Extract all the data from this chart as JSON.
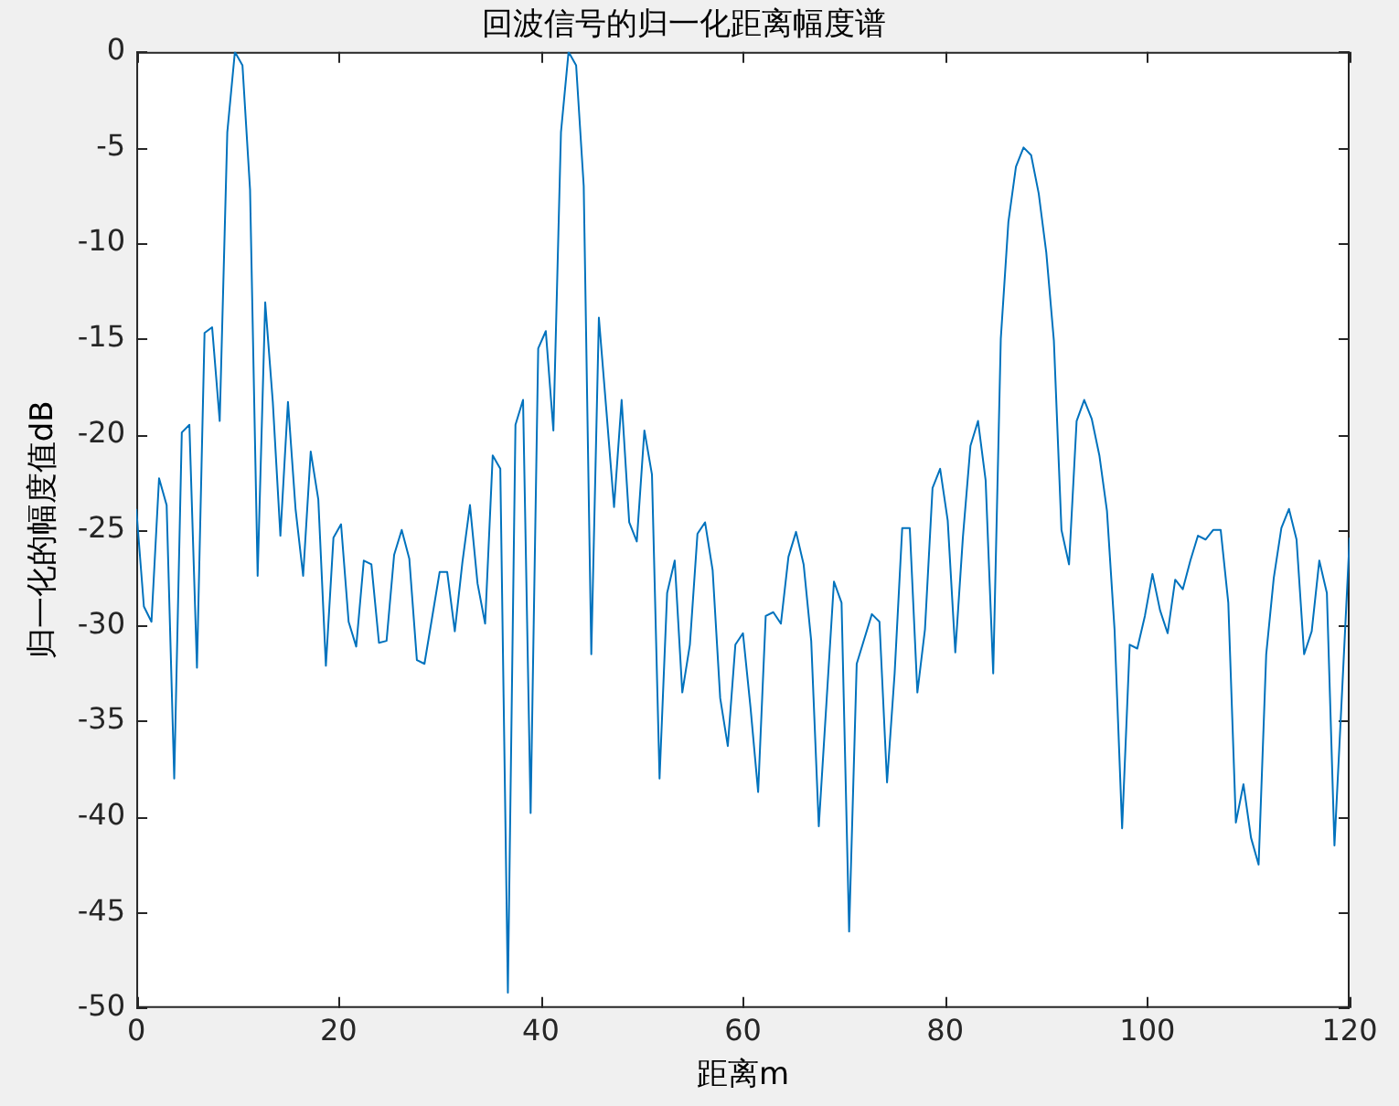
{
  "chart_data": {
    "type": "line",
    "title": "回波信号的归一化距离幅度谱",
    "xlabel": "距离m",
    "ylabel": "归一化的幅度值dB",
    "x": [
      0,
      0.75,
      1.5,
      2.25,
      3,
      3.75,
      4.5,
      5.25,
      6,
      6.75,
      7.5,
      8.25,
      9,
      9.75,
      10.5,
      11.25,
      12,
      12.75,
      13.5,
      14.25,
      15,
      15.75,
      16.5,
      17.25,
      18,
      18.75,
      19.5,
      20.25,
      21,
      21.75,
      22.5,
      23.25,
      24,
      24.75,
      25.5,
      26.25,
      27,
      27.75,
      28.5,
      29.25,
      30,
      30.75,
      31.5,
      32.25,
      33,
      33.75,
      34.5,
      35.25,
      36,
      36.75,
      37.5,
      38.25,
      39,
      39.75,
      40.5,
      41.25,
      42,
      42.75,
      43.5,
      44.25,
      45,
      45.75,
      46.5,
      47.25,
      48,
      48.75,
      49.5,
      50.25,
      51,
      51.75,
      52.5,
      53.25,
      54,
      54.75,
      55.5,
      56.25,
      57,
      57.75,
      58.5,
      59.25,
      60,
      60.75,
      61.5,
      62.25,
      63,
      63.75,
      64.5,
      65.25,
      66,
      66.75,
      67.5,
      68.25,
      69,
      69.75,
      70.5,
      71.25,
      72,
      72.75,
      73.5,
      74.25,
      75,
      75.75,
      76.5,
      77.25,
      78,
      78.75,
      79.5,
      80.25,
      81,
      81.75,
      82.5,
      83.25,
      84,
      84.75,
      85.5,
      86.25,
      87,
      87.75,
      88.5,
      89.25,
      90,
      90.75,
      91.5,
      92.25,
      93,
      93.75,
      94.5,
      95.25,
      96,
      96.75,
      97.5,
      98.25,
      99,
      99.75,
      100.5,
      101.25,
      102,
      102.75,
      103.5,
      104.25,
      105,
      105.75,
      106.5,
      107.25,
      108,
      108.75,
      109.5,
      110.25,
      111,
      111.75,
      112.5,
      113.25,
      114,
      114.75,
      115.5,
      116.25,
      117,
      117.75,
      118.5,
      119.25,
      120
    ],
    "series": [
      {
        "color": "#0072bd",
        "values": [
          -23.9,
          -29.0,
          -29.8,
          -22.3,
          -23.7,
          -38.0,
          -19.9,
          -19.5,
          -32.2,
          -14.7,
          -14.4,
          -19.3,
          -4.2,
          0,
          -0.7,
          -7.2,
          -27.4,
          -13.1,
          -18.3,
          -25.3,
          -18.3,
          -23.9,
          -27.4,
          -20.9,
          -23.4,
          -32.1,
          -25.4,
          -24.7,
          -29.8,
          -31.1,
          -26.6,
          -26.8,
          -30.9,
          -30.8,
          -26.3,
          -25.0,
          -26.5,
          -31.8,
          -32.0,
          -29.6,
          -27.2,
          -27.2,
          -30.3,
          -26.7,
          -23.7,
          -27.8,
          -29.9,
          -21.1,
          -21.8,
          -49.2,
          -19.5,
          -18.2,
          -39.8,
          -15.5,
          -14.6,
          -19.8,
          -4.2,
          0,
          -0.7,
          -7.0,
          -31.5,
          -13.9,
          -18.8,
          -23.8,
          -18.2,
          -24.6,
          -25.6,
          -19.8,
          -22.1,
          -38.0,
          -28.3,
          -26.6,
          -33.5,
          -31.0,
          -25.2,
          -24.6,
          -27.1,
          -33.8,
          -36.3,
          -31.0,
          -30.4,
          -34.3,
          -38.7,
          -29.5,
          -29.3,
          -29.9,
          -26.4,
          -25.1,
          -26.8,
          -30.8,
          -40.5,
          -34.1,
          -27.7,
          -28.8,
          -46.0,
          -32.0,
          -30.7,
          -29.4,
          -29.8,
          -38.2,
          -32.5,
          -24.9,
          -24.9,
          -33.5,
          -30.2,
          -22.8,
          -21.8,
          -24.5,
          -31.4,
          -25.4,
          -20.6,
          -19.3,
          -22.4,
          -32.5,
          -15.0,
          -8.9,
          -6.0,
          -5.0,
          -5.4,
          -7.4,
          -10.5,
          -15.1,
          -25.0,
          -26.8,
          -19.3,
          -18.2,
          -19.2,
          -21.1,
          -24.0,
          -30.2,
          -40.6,
          -31.0,
          -31.2,
          -29.5,
          -27.3,
          -29.2,
          -30.4,
          -27.6,
          -28.1,
          -26.6,
          -25.3,
          -25.5,
          -25.0,
          -25.0,
          -28.8,
          -40.3,
          -38.3,
          -41.1,
          -42.5,
          -31.5,
          -27.5,
          -24.9,
          -23.9,
          -25.5,
          -31.5,
          -30.3,
          -26.6,
          -28.3,
          -41.5,
          -33.5,
          -25.4
        ]
      }
    ],
    "xlim": [
      0,
      120
    ],
    "xticks": [
      0,
      20,
      40,
      60,
      80,
      100,
      120
    ],
    "ylim": [
      -50,
      0
    ],
    "yticks": [
      -50,
      -45,
      -40,
      -35,
      -30,
      -25,
      -20,
      -15,
      -10,
      -5,
      0
    ],
    "grid": false,
    "legend": false,
    "marker": "none",
    "line_style": "solid"
  }
}
